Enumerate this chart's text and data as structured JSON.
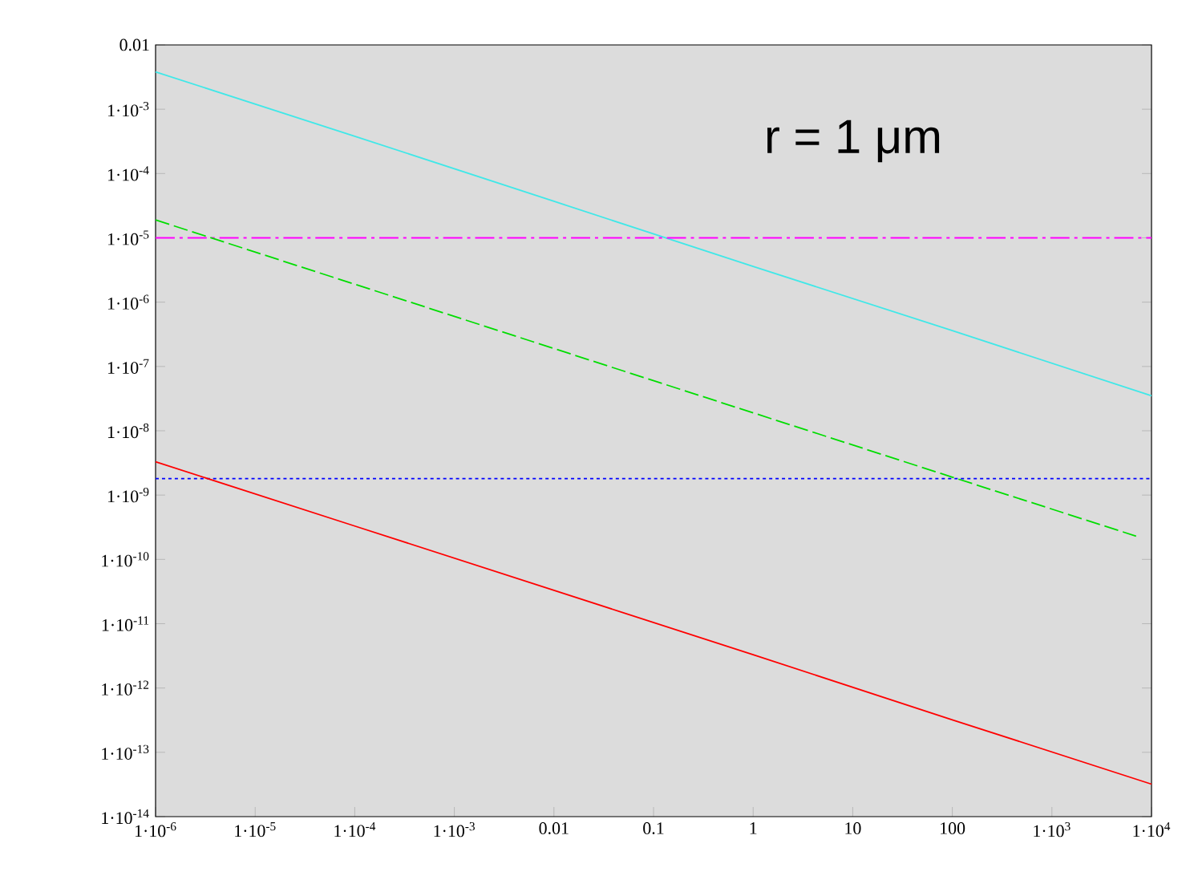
{
  "chart_data": {
    "type": "line",
    "log": "xy",
    "annotations": [
      "r = 1 μm"
    ],
    "xlim": [
      1e-06,
      10000.0
    ],
    "ylim": [
      1e-14,
      0.01
    ],
    "xticks": [
      {
        "value": 1e-06,
        "label": "1·10$^{-6}$"
      },
      {
        "value": 1e-05,
        "label": "1·10$^{-5}$"
      },
      {
        "value": 0.0001,
        "label": "1·10$^{-4}$"
      },
      {
        "value": 0.001,
        "label": "1·10$^{-3}$"
      },
      0.01,
      0.1,
      1,
      10,
      100,
      {
        "value": 1000,
        "label": "1·10$^{3}$"
      },
      {
        "value": 10000,
        "label": "1·10$^{4}$"
      }
    ],
    "yticks": [
      {
        "value": 1e-14,
        "label": "1·10$^{-14}$"
      },
      {
        "value": 1e-13,
        "label": "1·10$^{-13}$"
      },
      {
        "value": 1e-12,
        "label": "1·10$^{-12}$"
      },
      {
        "value": 1e-11,
        "label": "1·10$^{-11}$"
      },
      {
        "value": 1e-10,
        "label": "1·10$^{-10}$"
      },
      {
        "value": 1e-09,
        "label": "1·10$^{-9}$"
      },
      {
        "value": 1e-08,
        "label": "1·10$^{-8}$"
      },
      {
        "value": 1e-07,
        "label": "1·10$^{-7}$"
      },
      {
        "value": 1e-06,
        "label": "1·10$^{-6}$"
      },
      {
        "value": 1e-05,
        "label": "1·10$^{-5}$"
      },
      {
        "value": 0.0001,
        "label": "1·10$^{-4}$"
      },
      {
        "value": 0.001,
        "label": "1·10$^{-3}$"
      },
      0.01
    ],
    "x": [
      1e-06,
      0.0001,
      0.01,
      1,
      100,
      10000
    ],
    "grid": false,
    "marker": "none",
    "series": [
      {
        "color": "#40e8e8",
        "line_style": "solid",
        "values": [
          0.0038,
          0.00038,
          3.7e-05,
          3.6e-06,
          3.6e-07,
          3.5e-08
        ]
      },
      {
        "color": "#ff00ff",
        "line_style": "dashdot",
        "values": [
          1e-05,
          1e-05,
          1e-05,
          1e-05,
          1e-05,
          1e-05
        ]
      },
      {
        "color": "#00dd00",
        "line_style": "dashed",
        "x": [
          1e-06,
          0.0001,
          0.01,
          1,
          100,
          7000
        ],
        "values": [
          1.9e-05,
          1.9e-06,
          1.9e-07,
          1.9e-08,
          1.9e-09,
          2.3e-10
        ]
      },
      {
        "color": "#0000ff",
        "line_style": "dotted",
        "values": [
          1.8e-09,
          1.8e-09,
          1.8e-09,
          1.8e-09,
          1.8e-09,
          1.8e-09
        ]
      },
      {
        "color": "#ff0000",
        "line_style": "solid",
        "values": [
          3.3e-09,
          3.3e-10,
          3.3e-11,
          3.3e-12,
          3.2e-13,
          3.2e-14
        ]
      }
    ]
  }
}
